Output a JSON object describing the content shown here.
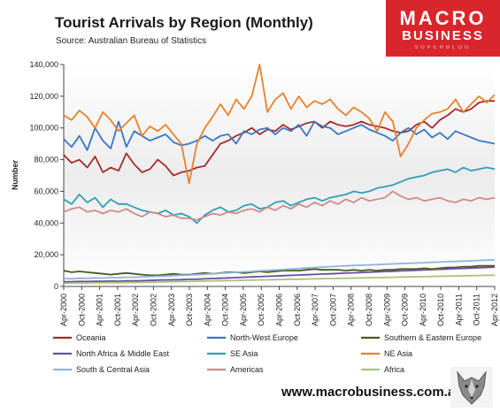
{
  "title": "Tourist Arrivals by Region (Monthly)",
  "source": "Source: Australian Bureau of Statistics",
  "logo": {
    "line1": "MACRO",
    "line2": "BUSINESS",
    "line3": "SUPERBLOG",
    "color": "#d8262c"
  },
  "footer": {
    "url": "www.macrobusiness.com.au",
    "icon": "wolf-icon"
  },
  "chart_data": {
    "type": "line",
    "title": "Tourist Arrivals by Region (Monthly)",
    "xlabel": "",
    "ylabel": "Number",
    "ylim": [
      0,
      140000
    ],
    "y_ticks": [
      0,
      20000,
      40000,
      60000,
      80000,
      100000,
      120000,
      140000
    ],
    "y_tick_labels": [
      "0",
      "20,000",
      "40,000",
      "60,000",
      "80,000",
      "100,000",
      "120,000",
      "140,000"
    ],
    "x_tick_labels": [
      "Apr-2000",
      "Oct-2000",
      "Apr-2001",
      "Oct-2001",
      "Apr-2002",
      "Oct-2002",
      "Apr-2003",
      "Oct-2003",
      "Apr-2004",
      "Oct-2004",
      "Apr-2005",
      "Oct-2005",
      "Apr-2006",
      "Oct-2006",
      "Apr-2007",
      "Oct-2007",
      "Apr-2008",
      "Oct-2008",
      "Apr-2009",
      "Oct-2009",
      "Apr-2010",
      "Oct-2010",
      "Apr-2011",
      "Oct-2011",
      "Apr-2012"
    ],
    "x_start": "Apr-2000",
    "x_end": "Apr-2012",
    "grid": false,
    "legend_position": "bottom",
    "series": [
      {
        "name": "Oceania",
        "color": "#a52a2a",
        "values": [
          83000,
          78000,
          80000,
          75000,
          82000,
          72000,
          75000,
          73000,
          84000,
          77000,
          72000,
          74000,
          80000,
          76000,
          70000,
          72000,
          73000,
          75000,
          76000,
          83000,
          90000,
          92000,
          95000,
          97000,
          100000,
          96000,
          99000,
          98000,
          102000,
          99000,
          101000,
          103000,
          104000,
          100000,
          104000,
          102000,
          101000,
          102000,
          104000,
          102000,
          101000,
          100000,
          98000,
          97000,
          98000,
          102000,
          104000,
          100000,
          105000,
          108000,
          112000,
          110000,
          112000,
          116000,
          117000,
          117000
        ]
      },
      {
        "name": "North-West Europe",
        "color": "#3a76c4",
        "values": [
          93000,
          88000,
          95000,
          86000,
          100000,
          92000,
          87000,
          104000,
          88000,
          98000,
          95000,
          92000,
          94000,
          96000,
          91000,
          89000,
          90000,
          92000,
          95000,
          92000,
          95000,
          96000,
          90000,
          98000,
          96000,
          99000,
          100000,
          96000,
          100000,
          98000,
          102000,
          95000,
          104000,
          101000,
          100000,
          96000,
          98000,
          100000,
          102000,
          99000,
          97000,
          95000,
          92000,
          97000,
          100000,
          96000,
          99000,
          94000,
          97000,
          93000,
          98000,
          96000,
          94000,
          92000,
          91000,
          90000
        ]
      },
      {
        "name": "Southern & Eastern Europe",
        "color": "#4a5a1e",
        "values": [
          10000,
          9000,
          9500,
          9000,
          8500,
          8000,
          7500,
          8000,
          8500,
          8000,
          7500,
          7000,
          7000,
          7500,
          8000,
          7500,
          7500,
          8000,
          8500,
          8000,
          8500,
          9000,
          9000,
          8500,
          9000,
          9500,
          9000,
          9500,
          10000,
          10000,
          10000,
          10500,
          11000,
          10500,
          10500,
          10500,
          10000,
          10500,
          10000,
          10500,
          10000,
          10500,
          10500,
          11000,
          11000,
          11000,
          11500,
          11000,
          11500,
          12000,
          12000,
          12500,
          12500,
          13000,
          13000,
          13000
        ]
      },
      {
        "name": "North Africa & Middle East",
        "color": "#6a4fa0",
        "values": [
          3000,
          3000,
          3200,
          3100,
          3300,
          3300,
          3400,
          3300,
          3500,
          3500,
          3600,
          3800,
          4000,
          4100,
          4200,
          4300,
          4500,
          4600,
          4800,
          5000,
          5200,
          5400,
          5600,
          5800,
          6000,
          6200,
          6400,
          6600,
          6800,
          7000,
          7200,
          7400,
          7600,
          7800,
          8000,
          8200,
          8400,
          8600,
          8800,
          9000,
          9200,
          9400,
          9600,
          9800,
          10000,
          10200,
          10400,
          10600,
          10800,
          11000,
          11200,
          11400,
          11600,
          11800,
          12000,
          12200
        ]
      },
      {
        "name": "SE Asia",
        "color": "#2fa0b4",
        "values": [
          55000,
          52000,
          58000,
          53000,
          56000,
          50000,
          55000,
          52000,
          52000,
          50000,
          48000,
          47000,
          46000,
          48000,
          45000,
          46000,
          44000,
          40000,
          45000,
          48000,
          50000,
          47000,
          48000,
          51000,
          52000,
          49000,
          50000,
          53000,
          54000,
          51000,
          53000,
          55000,
          56000,
          54000,
          56000,
          57000,
          58000,
          60000,
          59000,
          60000,
          62000,
          63000,
          64000,
          66000,
          68000,
          69000,
          70000,
          72000,
          73000,
          74000,
          72000,
          75000,
          73000,
          74000,
          75000,
          74000
        ]
      },
      {
        "name": "NE Asia",
        "color": "#e8822c",
        "values": [
          108000,
          105000,
          111000,
          107000,
          100000,
          110000,
          105000,
          98000,
          103000,
          108000,
          95000,
          101000,
          98000,
          102000,
          96000,
          90000,
          65000,
          90000,
          100000,
          107000,
          115000,
          108000,
          118000,
          112000,
          120000,
          140000,
          110000,
          118000,
          122000,
          112000,
          120000,
          113000,
          117000,
          115000,
          118000,
          112000,
          108000,
          113000,
          110000,
          106000,
          98000,
          110000,
          104000,
          82000,
          90000,
          100000,
          105000,
          109000,
          110000,
          112000,
          118000,
          110000,
          115000,
          120000,
          116000,
          121000
        ]
      },
      {
        "name": "South & Central Asia",
        "color": "#8eb6dc",
        "values": [
          5000,
          4800,
          5200,
          5100,
          5400,
          5300,
          5600,
          5500,
          5800,
          5800,
          6000,
          6200,
          6400,
          6600,
          6800,
          7000,
          7200,
          7400,
          7700,
          8000,
          8300,
          8600,
          8900,
          9200,
          9500,
          9800,
          10100,
          10400,
          10700,
          11000,
          11300,
          11600,
          11900,
          12200,
          12500,
          12800,
          13000,
          13200,
          13400,
          13600,
          13800,
          14000,
          14200,
          14400,
          14600,
          14800,
          15000,
          15200,
          15400,
          15600,
          15800,
          16000,
          16200,
          16400,
          16600,
          16800
        ]
      },
      {
        "name": "Americas",
        "color": "#d08a8a",
        "values": [
          47000,
          49000,
          50000,
          47000,
          48000,
          46000,
          48000,
          47000,
          49000,
          46000,
          44000,
          47000,
          46000,
          44000,
          45000,
          43000,
          43000,
          42000,
          44000,
          46000,
          45000,
          47000,
          46000,
          48000,
          49000,
          47000,
          50000,
          48000,
          51000,
          49000,
          52000,
          50000,
          53000,
          51000,
          54000,
          52000,
          55000,
          53000,
          56000,
          54000,
          55000,
          56000,
          60000,
          57000,
          55000,
          56000,
          54000,
          55000,
          56000,
          54000,
          53000,
          55000,
          54000,
          56000,
          55000,
          56000
        ]
      },
      {
        "name": "Africa",
        "color": "#a8c47a",
        "values": [
          2000,
          2100,
          2200,
          2200,
          2300,
          2300,
          2400,
          2400,
          2500,
          2500,
          2600,
          2700,
          2800,
          2900,
          3000,
          3100,
          3200,
          3300,
          3400,
          3500,
          3600,
          3700,
          3800,
          3900,
          4000,
          4100,
          4200,
          4300,
          4400,
          4500,
          4600,
          4700,
          4800,
          4900,
          5000,
          5100,
          5200,
          5300,
          5400,
          5500,
          5600,
          5700,
          5800,
          5900,
          6000,
          6100,
          6200,
          6300,
          6400,
          6500,
          6600,
          6700,
          6800,
          6900,
          7000,
          7100
        ]
      }
    ]
  }
}
